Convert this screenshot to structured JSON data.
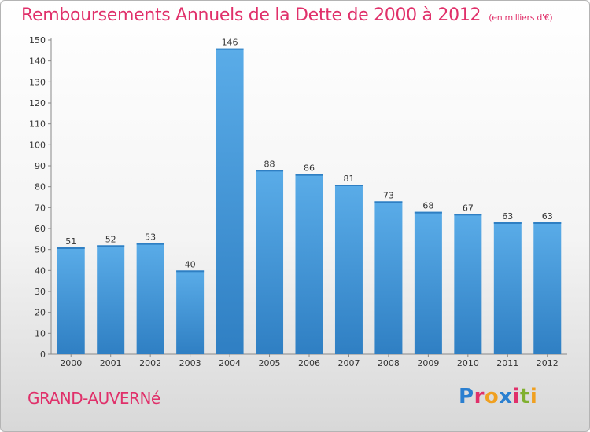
{
  "header": {
    "title": "Remboursements Annuels de la Dette de 2000 à 2012",
    "subtitle": "(en milliers d'€)"
  },
  "footer": {
    "commune": "GRAND-AUVERNé",
    "brand": "Proxiti",
    "brand_letters": [
      {
        "char": "P",
        "color": "#2a7fd0"
      },
      {
        "char": "r",
        "color": "#e0306a"
      },
      {
        "char": "o",
        "color": "#f0a020"
      },
      {
        "char": "x",
        "color": "#2a7fd0"
      },
      {
        "char": "i",
        "color": "#e0306a"
      },
      {
        "char": "t",
        "color": "#80b030"
      },
      {
        "char": "i",
        "color": "#f0a020"
      }
    ]
  },
  "chart_data": {
    "type": "bar",
    "title": "Remboursements Annuels de la Dette de 2000 à 2012",
    "subtitle": "(en milliers d'€)",
    "categories": [
      "2000",
      "2001",
      "2002",
      "2003",
      "2004",
      "2005",
      "2006",
      "2007",
      "2008",
      "2009",
      "2010",
      "2011",
      "2012"
    ],
    "values": [
      51,
      52,
      53,
      40,
      146,
      88,
      86,
      81,
      73,
      68,
      67,
      63,
      63
    ],
    "xlabel": "",
    "ylabel": "",
    "ylim": [
      0,
      150
    ],
    "yticks": [
      0,
      10,
      20,
      30,
      40,
      50,
      60,
      70,
      80,
      90,
      100,
      110,
      120,
      130,
      140,
      150
    ],
    "grid": false,
    "legend": "none",
    "bar_color_light": "#5aace8",
    "bar_color_dark": "#2f7fc3",
    "text_color": "#333333"
  }
}
